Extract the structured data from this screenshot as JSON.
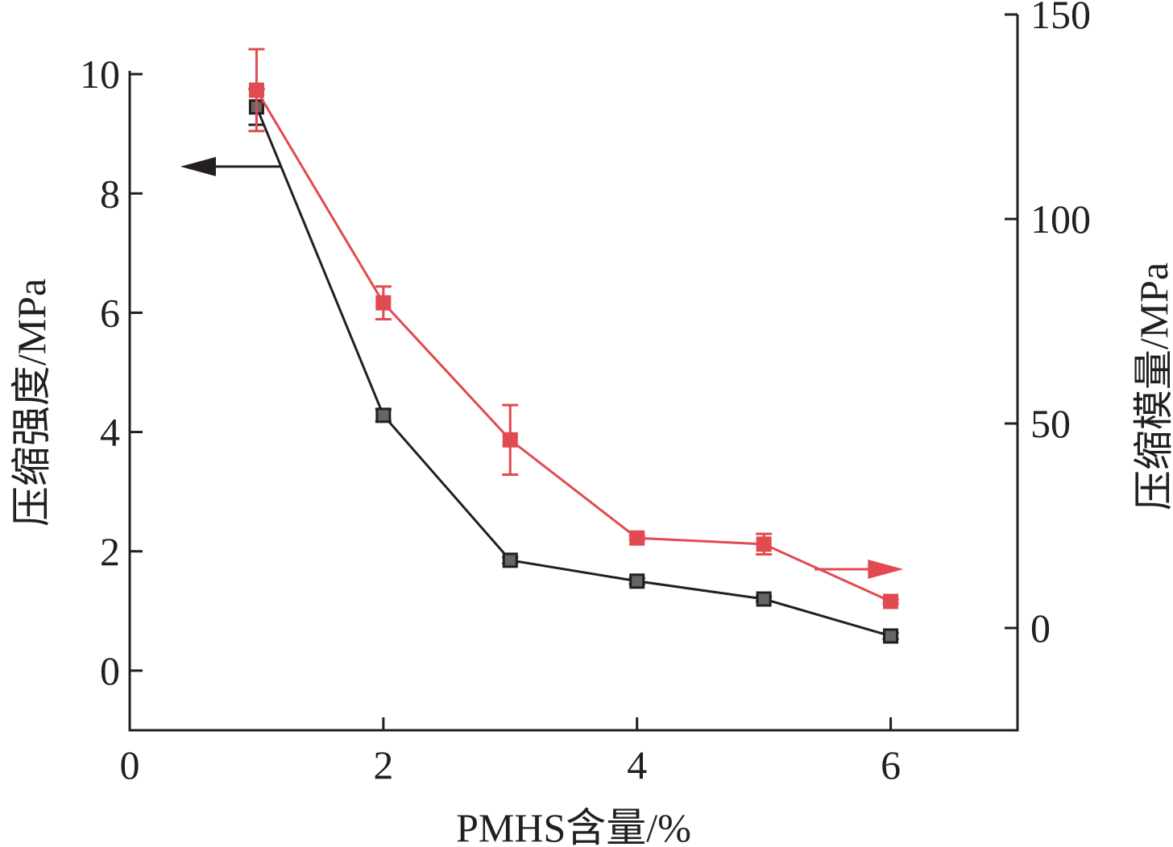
{
  "chart_data": {
    "type": "line",
    "xlabel": "PMHS含量/%",
    "ylabel_left": "压缩强度/MPa",
    "ylabel_right": "压缩模量/MPa",
    "xlim": [
      0,
      7
    ],
    "ylim_left": [
      -1,
      11
    ],
    "ylim_right": [
      -25,
      150
    ],
    "x_ticks": [
      0,
      2,
      4,
      6
    ],
    "y_left_ticks": [
      0,
      2,
      4,
      6,
      8,
      10
    ],
    "y_right_ticks": [
      0,
      50,
      100,
      150
    ],
    "grid": false,
    "legend": "none",
    "x": [
      1,
      2,
      3,
      4,
      5,
      6
    ],
    "series": [
      {
        "axis": "left",
        "color": "#231f20",
        "marker_fill": "#666666",
        "values": [
          9.45,
          4.28,
          1.85,
          1.5,
          1.2,
          0.58
        ],
        "errors": [
          0.3,
          0.1,
          0.05,
          0.05,
          0.04,
          0.05
        ]
      },
      {
        "axis": "right",
        "color": "#e04a50",
        "marker_fill": "#e04a50",
        "values": [
          131.5,
          79.5,
          46,
          22,
          20.5,
          6.5
        ],
        "errors": [
          10,
          4,
          8.5,
          0.5,
          2.5,
          0.5
        ]
      }
    ],
    "annotations": [
      {
        "type": "arrow",
        "direction": "left",
        "color": "#231f20",
        "x_from": 1.2,
        "x_to": 0.4,
        "y_left": 8.45
      },
      {
        "type": "arrow",
        "direction": "right",
        "color": "#e04a50",
        "x_from": 5.4,
        "x_to": 6.1,
        "y_left": 1.7
      }
    ]
  }
}
